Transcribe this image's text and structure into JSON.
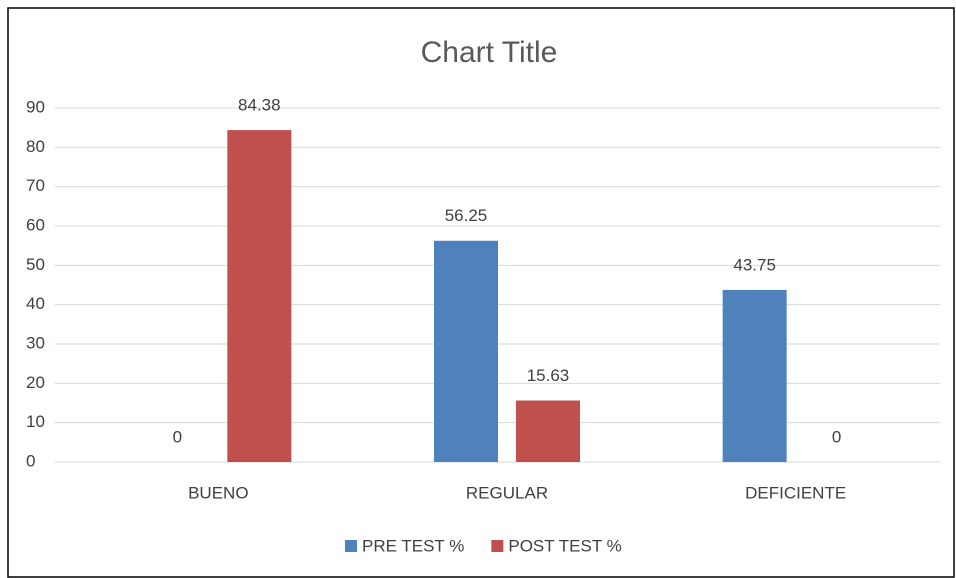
{
  "chart_data": {
    "type": "bar",
    "title": "Chart Title",
    "categories": [
      "BUENO",
      "REGULAR",
      "DEFICIENTE"
    ],
    "series": [
      {
        "name": "PRE TEST %",
        "color": "#4f81bd",
        "values": [
          0,
          56.25,
          43.75
        ]
      },
      {
        "name": "POST TEST %",
        "color": "#c0504d",
        "values": [
          84.38,
          15.63,
          0
        ]
      }
    ],
    "ylim": [
      0,
      90
    ],
    "yticks": [
      0,
      10,
      20,
      30,
      40,
      50,
      60,
      70,
      80,
      90
    ],
    "grid": true,
    "legend": "bottom"
  }
}
